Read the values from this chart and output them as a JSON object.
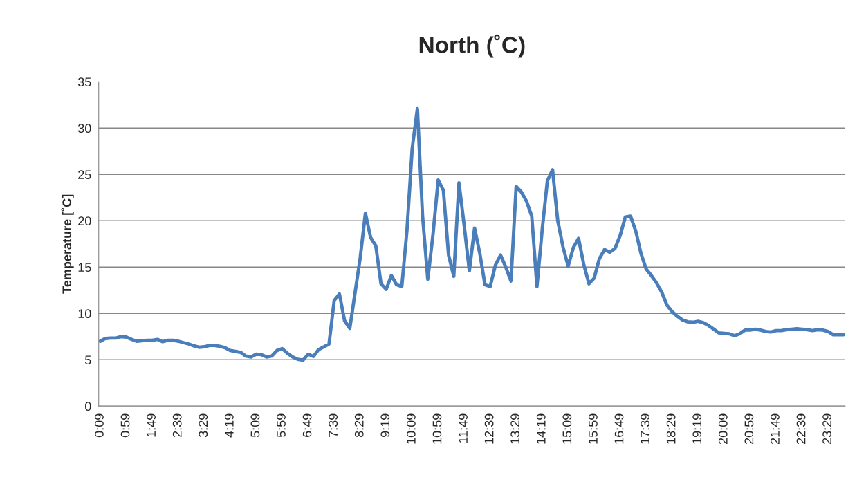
{
  "chart_data": {
    "type": "line",
    "title": "North (˚C)",
    "ylabel": "Temperature [˚C]",
    "categories": [
      "0:09",
      null,
      null,
      null,
      null,
      "0:59",
      null,
      null,
      null,
      null,
      "1:49",
      null,
      null,
      null,
      null,
      "2:39",
      null,
      null,
      null,
      null,
      "3:29",
      null,
      null,
      null,
      null,
      "4:19",
      null,
      null,
      null,
      null,
      "5:09",
      null,
      null,
      null,
      null,
      "5:59",
      null,
      null,
      null,
      null,
      "6:49",
      null,
      null,
      null,
      null,
      "7:39",
      null,
      null,
      null,
      null,
      "8:29",
      null,
      null,
      null,
      null,
      "9:19",
      null,
      null,
      null,
      null,
      "10:09",
      null,
      null,
      null,
      null,
      "10:59",
      null,
      null,
      null,
      null,
      "11:49",
      null,
      null,
      null,
      null,
      "12:39",
      null,
      null,
      null,
      null,
      "13:29",
      null,
      null,
      null,
      null,
      "14:19",
      null,
      null,
      null,
      null,
      "15:09",
      null,
      null,
      null,
      null,
      "15:59",
      null,
      null,
      null,
      null,
      "16:49",
      null,
      null,
      null,
      null,
      "17:39",
      null,
      null,
      null,
      null,
      "18:29",
      null,
      null,
      null,
      null,
      "19:19",
      null,
      null,
      null,
      null,
      "20:09",
      null,
      null,
      null,
      null,
      "20:59",
      null,
      null,
      null,
      null,
      "21:49",
      null,
      null,
      null,
      null,
      "22:39",
      null,
      null,
      null,
      null,
      "23:29",
      null,
      null,
      null
    ],
    "series": [
      {
        "color": "#4a7ebb",
        "values": [
          7.0,
          7.3,
          7.35,
          7.35,
          7.5,
          7.45,
          7.2,
          7.0,
          7.05,
          7.1,
          7.1,
          7.2,
          6.95,
          7.1,
          7.1,
          7.0,
          6.85,
          6.7,
          6.5,
          6.35,
          6.4,
          6.55,
          6.55,
          6.45,
          6.3,
          6.0,
          5.9,
          5.8,
          5.4,
          5.3,
          5.6,
          5.55,
          5.3,
          5.4,
          6.0,
          6.2,
          5.7,
          5.3,
          5.05,
          4.95,
          5.6,
          5.35,
          6.1,
          6.4,
          6.7,
          11.4,
          12.1,
          9.2,
          8.4,
          12.2,
          16.0,
          20.8,
          18.2,
          17.3,
          13.2,
          12.6,
          14.1,
          13.1,
          12.9,
          19.0,
          27.8,
          32.1,
          20.5,
          13.7,
          18.5,
          24.4,
          23.3,
          16.3,
          14.0,
          24.1,
          19.5,
          14.6,
          19.2,
          16.5,
          13.1,
          12.9,
          15.2,
          16.3,
          15.0,
          13.5,
          23.7,
          23.1,
          22.1,
          20.5,
          12.9,
          19.0,
          24.3,
          25.5,
          20.0,
          17.2,
          15.1,
          17.1,
          18.1,
          15.3,
          13.2,
          13.8,
          15.9,
          16.9,
          16.6,
          17.0,
          18.4,
          20.4,
          20.5,
          18.9,
          16.5,
          14.8,
          14.1,
          13.3,
          12.3,
          10.9,
          10.2,
          9.7,
          9.3,
          9.1,
          9.05,
          9.15,
          9.0,
          8.7,
          8.3,
          7.9,
          7.85,
          7.8,
          7.6,
          7.8,
          8.2,
          8.2,
          8.3,
          8.2,
          8.05,
          8.0,
          8.15,
          8.15,
          8.25,
          8.3,
          8.35,
          8.3,
          8.25,
          8.15,
          8.25,
          8.2,
          8.05,
          7.7,
          7.7,
          7.7
        ]
      }
    ],
    "ylim": [
      0,
      35
    ],
    "yticks": [
      0,
      5,
      10,
      15,
      20,
      25,
      30,
      35
    ],
    "grid": "y",
    "marker": "none",
    "line_style": "solid"
  }
}
